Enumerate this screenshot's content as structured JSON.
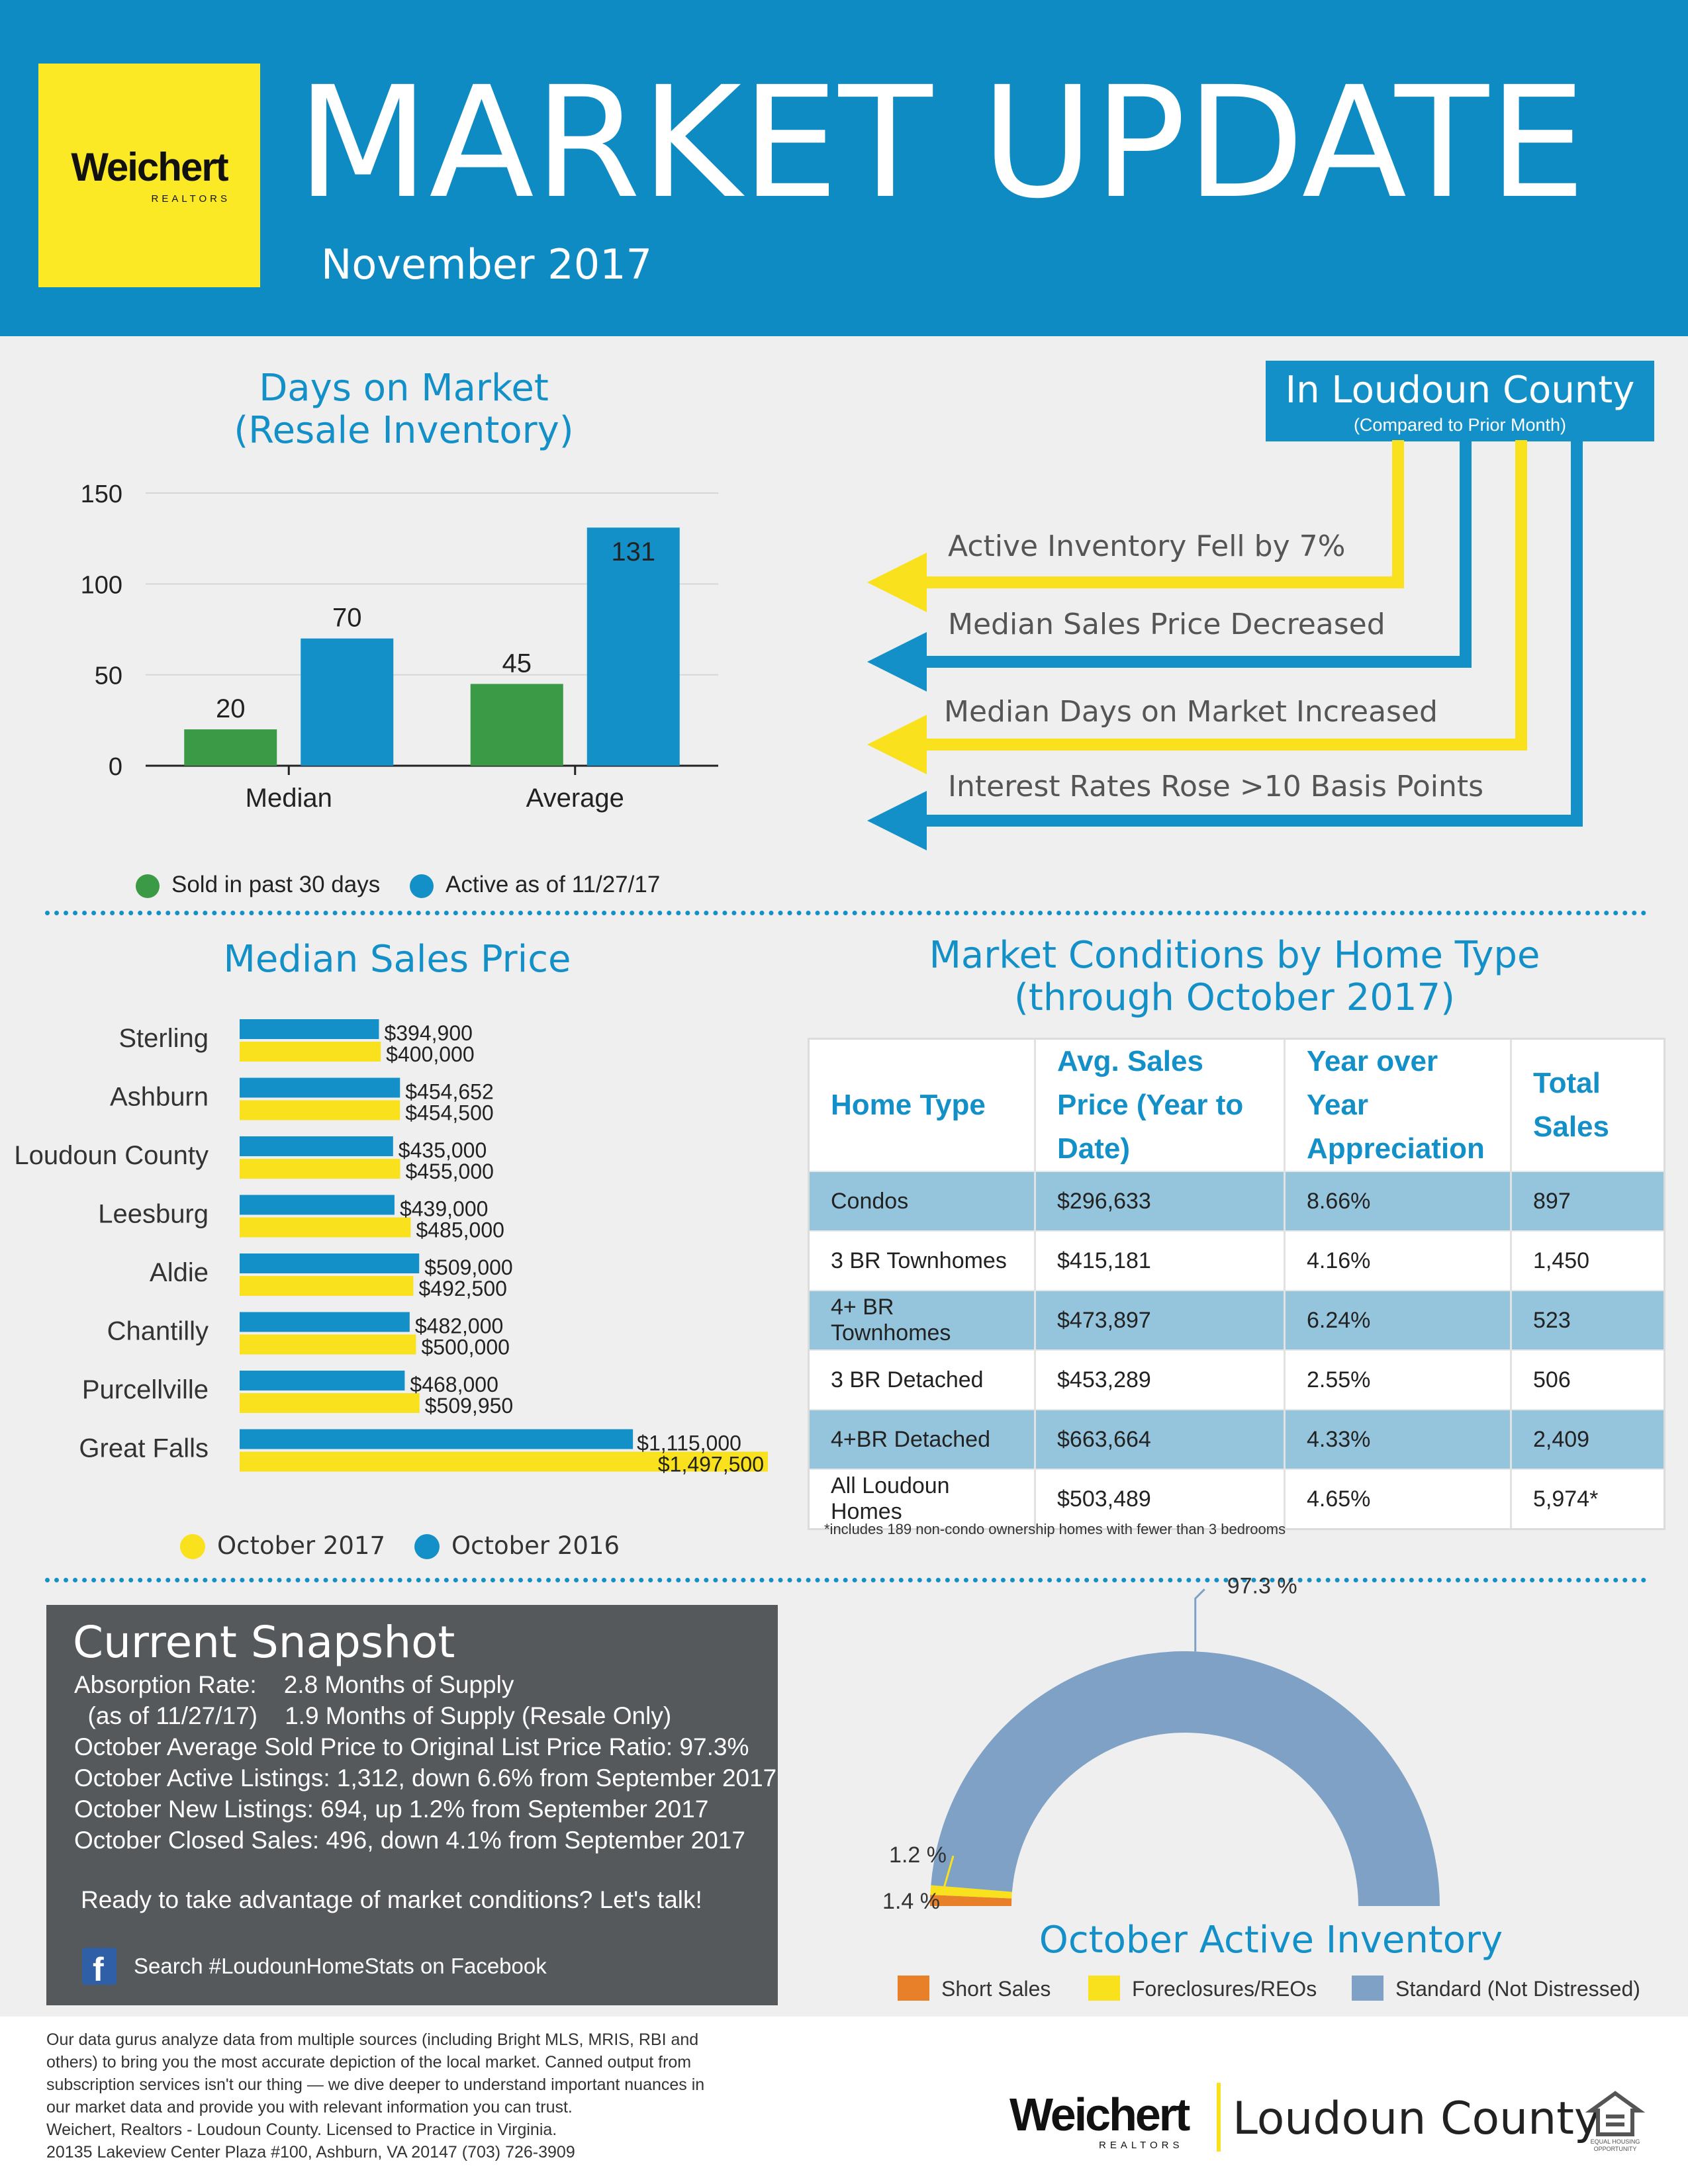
{
  "header": {
    "logo_name": "Weichert",
    "logo_sub": "REALTORS",
    "title": "MARKET UPDATE",
    "date": "November 2017"
  },
  "days_on_market": {
    "title_line1": "Days on Market",
    "title_line2": "(Resale Inventory)",
    "legend": [
      "Sold in past 30 days",
      "Active as of 11/27/17"
    ]
  },
  "loudoun": {
    "title": "In Loudoun County",
    "subtitle": "(Compared to Prior Month)",
    "items": [
      {
        "text": "Active Inventory Fell by 7%",
        "color": "#f9e11e"
      },
      {
        "text": "Median Sales Price Decreased",
        "color": "#1490c8"
      },
      {
        "text": "Median Days on Market Increased",
        "color": "#f9e11e"
      },
      {
        "text": "Interest Rates Rose >10 Basis Points",
        "color": "#1490c8"
      }
    ]
  },
  "median_price": {
    "title": "Median Sales Price",
    "legend": [
      "October 2017",
      "October 2016"
    ]
  },
  "conditions": {
    "title_line1": "Market Conditions by Home Type",
    "title_line2": "(through October 2017)",
    "headers": [
      "Home Type",
      "Avg. Sales Price (Year to Date)",
      "Year over Year Appreciation",
      "Total Sales"
    ],
    "rows": [
      [
        "Condos",
        "$296,633",
        "8.66%",
        "897"
      ],
      [
        "3 BR Townhomes",
        "$415,181",
        "4.16%",
        "1,450"
      ],
      [
        "4+ BR Townhomes",
        "$473,897",
        "6.24%",
        "523"
      ],
      [
        "3 BR Detached",
        "$453,289",
        "2.55%",
        "506"
      ],
      [
        "4+BR Detached",
        "$663,664",
        "4.33%",
        "2,409"
      ],
      [
        "All Loudoun Homes",
        "$503,489",
        "4.65%",
        "5,974*"
      ]
    ],
    "footnote": "*includes 189 non-condo ownership homes with fewer than 3 bedrooms"
  },
  "snapshot": {
    "title": "Current Snapshot",
    "lines": [
      "Absorption Rate:    2.8 Months of Supply",
      "  (as of 11/27/17)    1.9 Months of Supply (Resale Only)",
      "October Average Sold Price to Original List Price Ratio: 97.3%",
      "October Active Listings: 1,312, down 6.6% from September 2017",
      "October New Listings: 694, up 1.2% from September 2017",
      "October Closed Sales: 496, down 4.1% from September 2017"
    ],
    "cta": "Ready to take advantage of market conditions? Let's talk!",
    "facebook": "Search #LoudounHomeStats on Facebook"
  },
  "inventory": {
    "title": "October Active Inventory"
  },
  "footer": {
    "lines": [
      "Our data gurus analyze data from multiple sources (including Bright MLS, MRIS, RBI and",
      "others) to bring you the most accurate depiction of the local market. Canned output from",
      "subscription services isn't our thing — we dive deeper to understand important nuances in",
      "our market data and provide you with relevant information you can trust.",
      "Weichert, Realtors - Loudoun County. Licensed to Practice in Virginia.",
      "20135 Lakeview Center Plaza #100, Ashburn, VA 20147   (703) 726-3909"
    ],
    "brand": "Weichert",
    "brand_sub": "REALTORS",
    "office": "Loudoun County",
    "eho_text": "EQUAL HOUSING OPPORTUNITY"
  },
  "colors": {
    "blue": "#1490c8",
    "green": "#3a9a45",
    "yellow": "#f9e11e",
    "orange": "#e8802a",
    "slate": "#7fa1c6",
    "gray": "#55595c"
  },
  "chart_data": [
    {
      "type": "bar",
      "title": "Days on Market (Resale Inventory)",
      "categories": [
        "Median",
        "Average"
      ],
      "series": [
        {
          "name": "Sold in past 30 days",
          "values": [
            20,
            45
          ],
          "color": "#3a9a45"
        },
        {
          "name": "Active as of 11/27/17",
          "values": [
            70,
            131
          ],
          "color": "#1490c8"
        }
      ],
      "yticks": [
        0,
        50,
        100,
        150
      ],
      "ylim": [
        0,
        150
      ],
      "grid": true,
      "legend": "bottom"
    },
    {
      "type": "bar",
      "orientation": "horizontal",
      "title": "Median Sales Price",
      "categories": [
        "Sterling",
        "Ashburn",
        "Loudoun County",
        "Leesburg",
        "Aldie",
        "Chantilly",
        "Purcellville",
        "Great Falls"
      ],
      "series": [
        {
          "name": "October 2016",
          "values": [
            394900,
            454652,
            435000,
            439000,
            509000,
            482000,
            468000,
            1115000
          ],
          "labels": [
            "$394,900",
            "$454,652",
            "$435,000",
            "$439,000",
            "$509,000",
            "$482,000",
            "$468,000",
            "$1,115,000"
          ],
          "color": "#1490c8"
        },
        {
          "name": "October 2017",
          "values": [
            400000,
            454500,
            455000,
            485000,
            492500,
            500000,
            509950,
            1497500
          ],
          "labels": [
            "$400,000",
            "$454,500",
            "$455,000",
            "$485,000",
            "$492,500",
            "$500,000",
            "$509,950",
            "$1,497,500"
          ],
          "color": "#f9e11e"
        }
      ],
      "legend": "bottom"
    },
    {
      "type": "pie",
      "style": "half-donut",
      "title": "October Active Inventory",
      "categories": [
        "Short Sales",
        "Foreclosures/REOs",
        "Standard (Not Distressed)"
      ],
      "values": [
        1.4,
        1.2,
        97.3
      ],
      "labels": [
        "1.4 %",
        "1.2 %",
        "97.3 %"
      ],
      "colors": [
        "#e8802a",
        "#f9e11e",
        "#7fa1c6"
      ],
      "legend": "bottom"
    }
  ]
}
